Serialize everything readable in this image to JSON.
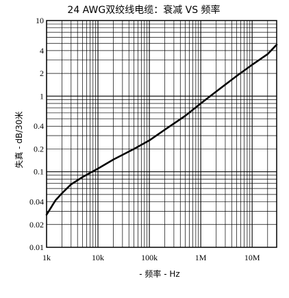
{
  "chart_data": {
    "type": "line",
    "title": "24 AWG双绞线电缆：衰减 VS 频率",
    "xlabel": "- 频率 - Hz",
    "ylabel": "失真 - dB/30米",
    "x_scale": "log",
    "y_scale": "log",
    "xlim": [
      1000,
      30000000
    ],
    "ylim": [
      0.01,
      10
    ],
    "x_ticks": [
      {
        "value": 1000,
        "label": "1k"
      },
      {
        "value": 10000,
        "label": "10k"
      },
      {
        "value": 100000,
        "label": "100k"
      },
      {
        "value": 1000000,
        "label": "1M"
      },
      {
        "value": 10000000,
        "label": "10M"
      }
    ],
    "y_ticks": [
      {
        "value": 0.01,
        "label": "0.01"
      },
      {
        "value": 0.02,
        "label": "0.02"
      },
      {
        "value": 0.04,
        "label": "0.04"
      },
      {
        "value": 0.1,
        "label": "0.1"
      },
      {
        "value": 0.2,
        "label": "0.2"
      },
      {
        "value": 0.4,
        "label": "0.4"
      },
      {
        "value": 1,
        "label": "1"
      },
      {
        "value": 2,
        "label": "2"
      },
      {
        "value": 4,
        "label": "4"
      },
      {
        "value": 10,
        "label": "10"
      }
    ],
    "grid": true,
    "series": [
      {
        "x": [
          1000,
          1500,
          2000,
          3000,
          5000,
          10000,
          20000,
          50000,
          100000,
          200000,
          500000,
          1000000,
          2000000,
          5000000,
          10000000,
          20000000,
          30000000
        ],
        "y": [
          0.027,
          0.042,
          0.052,
          0.068,
          0.085,
          0.11,
          0.145,
          0.2,
          0.26,
          0.36,
          0.55,
          0.8,
          1.15,
          1.85,
          2.6,
          3.6,
          4.8
        ],
        "color": "#000000"
      }
    ]
  }
}
